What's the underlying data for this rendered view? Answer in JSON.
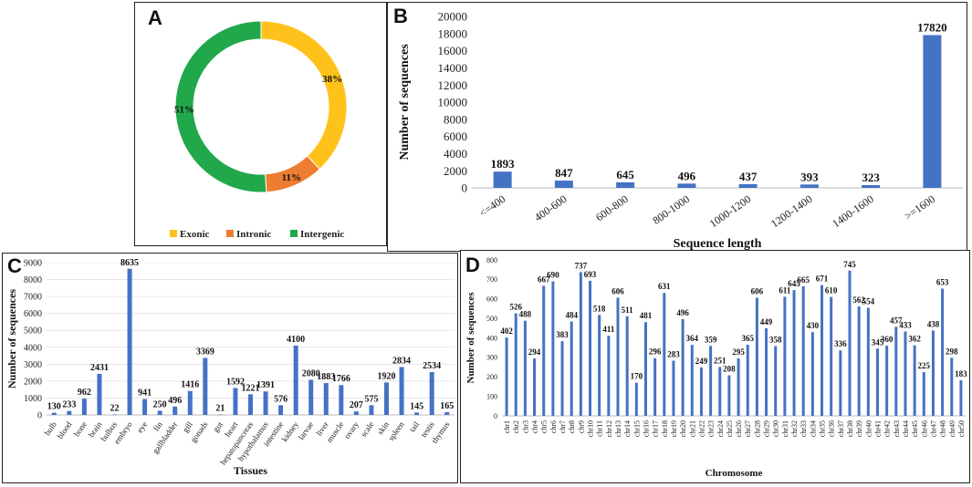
{
  "panel_labels": {
    "a": "A",
    "b": "B",
    "c": "C",
    "d": "D"
  },
  "chart_data": [
    {
      "panel": "A",
      "type": "pie",
      "donut": true,
      "labels": [
        "Exonic",
        "Intronic",
        "Intergenic"
      ],
      "values": [
        38,
        11,
        51
      ],
      "value_labels": [
        "38%",
        "11%",
        "51%"
      ],
      "colors": [
        "#FFC21A",
        "#ED7D31",
        "#21A84B"
      ],
      "legend": "bottom"
    },
    {
      "panel": "B",
      "type": "bar",
      "categories": [
        "<=400",
        "400-600",
        "600-800",
        "800-1000",
        "1000-1200",
        "1200-1400",
        "1400-1600",
        ">=1600"
      ],
      "values": [
        1893,
        847,
        645,
        496,
        437,
        393,
        323,
        17820
      ],
      "ylim": [
        0,
        20000
      ],
      "yticks": [
        "0",
        "2000",
        "4000",
        "6000",
        "8000",
        "10000",
        "12000",
        "14000",
        "16000",
        "18000",
        "20000"
      ],
      "xlabel": "Sequence length",
      "ylabel": "Number of sequences",
      "color": "#4472C4"
    },
    {
      "panel": "C",
      "type": "bar",
      "categories": [
        "bulb",
        "blood",
        "bone",
        "brain",
        "bulbus",
        "embryo",
        "eye",
        "fin",
        "gallbladder",
        "gill",
        "gonads",
        "gut",
        "heart",
        "hepatopancreas",
        "hypothalamus",
        "intestine",
        "kidney",
        "larvae",
        "liver",
        "muscle",
        "ovary",
        "scale",
        "skin",
        "spleen",
        "tail",
        "testis",
        "thymus"
      ],
      "values": [
        130,
        233,
        962,
        2431,
        22,
        8635,
        941,
        250,
        496,
        1416,
        3369,
        21,
        1592,
        1221,
        1391,
        576,
        4100,
        2080,
        1883,
        1766,
        207,
        575,
        1920,
        2834,
        145,
        2534,
        165
      ],
      "ylim": [
        0,
        9000
      ],
      "yticks": [
        "0",
        "1000",
        "2000",
        "3000",
        "4000",
        "5000",
        "6000",
        "7000",
        "8000",
        "9000"
      ],
      "xlabel": "Tissues",
      "ylabel": "Number of sequences",
      "color": "#4472C4"
    },
    {
      "panel": "D",
      "type": "bar",
      "categories": [
        "chr1",
        "chr2",
        "chr3",
        "chr4",
        "chr5",
        "chr6",
        "chr7",
        "chr8",
        "chr9",
        "chr10",
        "chr11",
        "chr12",
        "chr13",
        "chr14",
        "chr15",
        "chr16",
        "chr17",
        "chr18",
        "chr19",
        "chr20",
        "chr21",
        "chr22",
        "chr23",
        "chr24",
        "chr25",
        "chr26",
        "chr27",
        "chr28",
        "chr29",
        "chr30",
        "chr31",
        "chr32",
        "chr33",
        "chr34",
        "chr35",
        "chr36",
        "chr37",
        "chr38",
        "chr39",
        "chr40",
        "chr41",
        "chr42",
        "chr43",
        "chr44",
        "chr45",
        "chr46",
        "chr47",
        "chr48",
        "chr49",
        "chr50"
      ],
      "values": [
        402,
        526,
        488,
        294,
        667,
        690,
        383,
        484,
        737,
        693,
        518,
        411,
        606,
        511,
        170,
        481,
        296,
        631,
        283,
        496,
        364,
        249,
        359,
        251,
        208,
        295,
        365,
        606,
        449,
        358,
        611,
        645,
        665,
        430,
        671,
        610,
        336,
        745,
        562,
        554,
        345,
        360,
        457,
        433,
        362,
        225,
        438,
        653,
        298,
        183
      ],
      "ylim": [
        0,
        800
      ],
      "yticks": [
        "0",
        "100",
        "200",
        "300",
        "400",
        "500",
        "600",
        "700",
        "800"
      ],
      "xlabel": "Chromosome",
      "ylabel": "Number of sequences",
      "color": "#4472C4"
    }
  ]
}
